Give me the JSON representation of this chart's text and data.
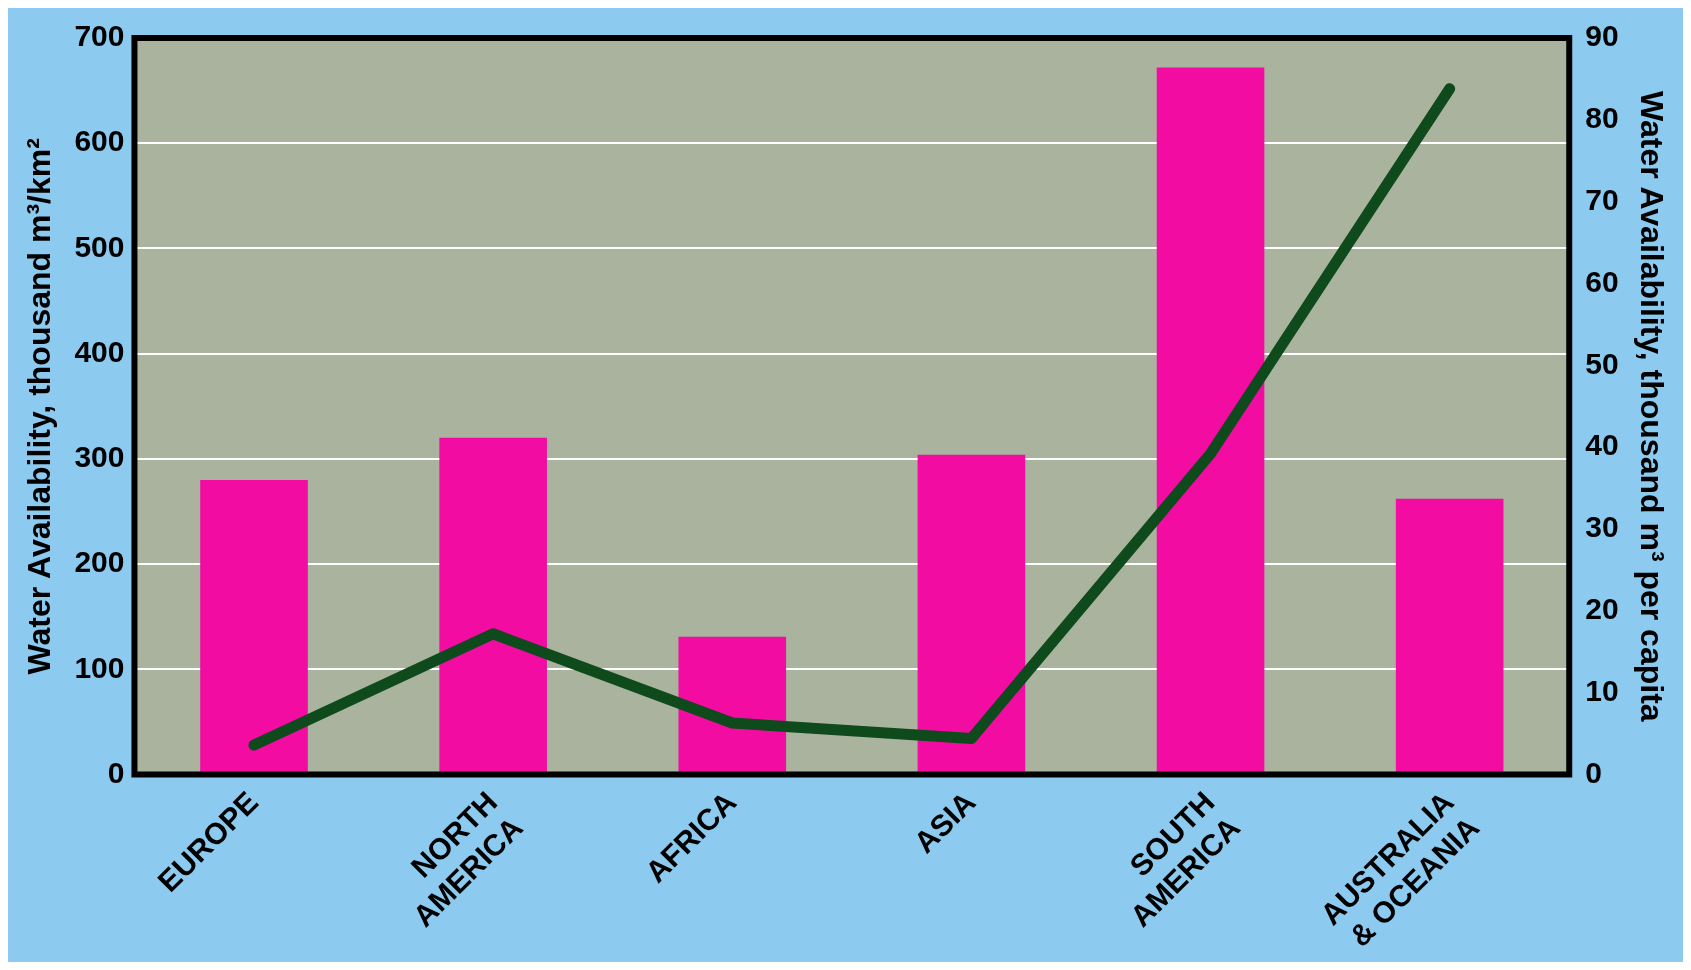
{
  "chart_data": {
    "type": "bar",
    "categories": [
      "EUROPE",
      "NORTH\nAMERICA",
      "AFRICA",
      "ASIA",
      "SOUTH\nAMERICA",
      "AUSTRALIA\n& OCEANIA"
    ],
    "ylabel": "Water Availability, thousand m³/km²",
    "y2label": "Water Availability, thousand m³ per capita",
    "series": [
      {
        "color": "#f20ca2",
        "values": [
          280,
          320,
          131,
          304,
          672,
          262
        ]
      },
      {
        "type": "line",
        "axis": "y2",
        "color": "#0f4a1c",
        "values": [
          3.6,
          17.2,
          6.3,
          4.4,
          39.2,
          83.8
        ]
      }
    ],
    "ylim": [
      0,
      700
    ],
    "yticks": [
      0,
      100,
      200,
      300,
      400,
      500,
      600,
      700
    ],
    "y2lim": [
      0,
      90
    ],
    "y2ticks": [
      0,
      10,
      20,
      30,
      40,
      50,
      60,
      70,
      80,
      90
    ],
    "grid": "y",
    "legend": false,
    "marker": "none",
    "line_style": "solid"
  }
}
